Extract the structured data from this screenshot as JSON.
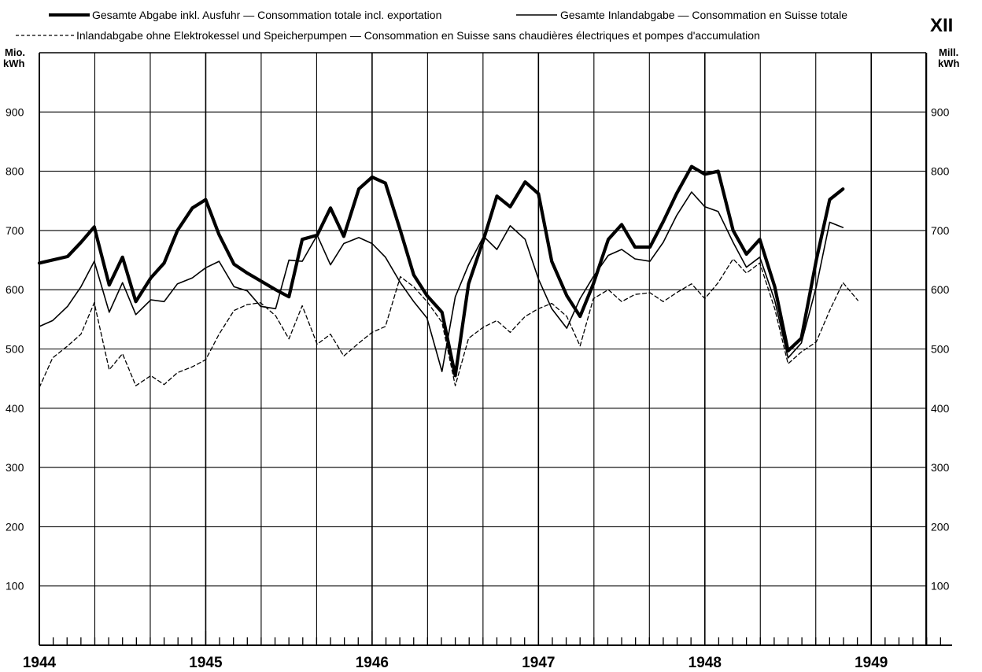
{
  "chart_data": {
    "type": "line",
    "figure_number": "XII",
    "y_unit_left": [
      "Mio.",
      "kWh"
    ],
    "y_unit_right": [
      "Mill.",
      "kWh"
    ],
    "ylim": [
      0,
      1000
    ],
    "yticks": [
      100,
      200,
      300,
      400,
      500,
      600,
      700,
      800,
      900
    ],
    "x_years": [
      "1944",
      "1945",
      "1946",
      "1947",
      "1948",
      "1949"
    ],
    "grid": true,
    "legend_placement": "top",
    "series": [
      {
        "name": "Gesamte Abgabe inkl. Ausfuhr — Consommation totale incl. exportation",
        "style": "thick",
        "color": "#000000",
        "points": [
          [
            1944.0,
            645
          ],
          [
            1944.17,
            656
          ],
          [
            1944.25,
            680
          ],
          [
            1944.33,
            706
          ],
          [
            1944.42,
            608
          ],
          [
            1944.5,
            655
          ],
          [
            1944.58,
            580
          ],
          [
            1944.67,
            620
          ],
          [
            1944.75,
            645
          ],
          [
            1944.83,
            700
          ],
          [
            1944.92,
            738
          ],
          [
            1945.0,
            752
          ],
          [
            1945.08,
            693
          ],
          [
            1945.17,
            643
          ],
          [
            1945.25,
            628
          ],
          [
            1945.33,
            615
          ],
          [
            1945.42,
            600
          ],
          [
            1945.5,
            588
          ],
          [
            1945.58,
            685
          ],
          [
            1945.67,
            692
          ],
          [
            1945.75,
            738
          ],
          [
            1945.83,
            690
          ],
          [
            1945.92,
            770
          ],
          [
            1946.0,
            790
          ],
          [
            1946.08,
            780
          ],
          [
            1946.17,
            700
          ],
          [
            1946.25,
            625
          ],
          [
            1946.33,
            590
          ],
          [
            1946.42,
            562
          ],
          [
            1946.5,
            455
          ],
          [
            1946.58,
            610
          ],
          [
            1946.67,
            685
          ],
          [
            1946.75,
            758
          ],
          [
            1946.83,
            740
          ],
          [
            1946.92,
            782
          ],
          [
            1947.0,
            762
          ],
          [
            1947.08,
            648
          ],
          [
            1947.17,
            590
          ],
          [
            1947.25,
            555
          ],
          [
            1947.33,
            610
          ],
          [
            1947.42,
            685
          ],
          [
            1947.5,
            710
          ],
          [
            1947.58,
            672
          ],
          [
            1947.67,
            672
          ],
          [
            1947.75,
            715
          ],
          [
            1947.83,
            762
          ],
          [
            1947.92,
            808
          ],
          [
            1948.0,
            795
          ],
          [
            1948.08,
            800
          ],
          [
            1948.17,
            700
          ],
          [
            1948.25,
            660
          ],
          [
            1948.33,
            685
          ],
          [
            1948.42,
            605
          ],
          [
            1948.5,
            497
          ],
          [
            1948.58,
            518
          ],
          [
            1948.67,
            650
          ],
          [
            1948.75,
            752
          ],
          [
            1948.83,
            770
          ]
        ]
      },
      {
        "name": "Gesamte Inlandabgabe — Consommation en Suisse totale",
        "style": "thin",
        "color": "#000000",
        "points": [
          [
            1944.0,
            538
          ],
          [
            1944.08,
            548
          ],
          [
            1944.17,
            572
          ],
          [
            1944.25,
            605
          ],
          [
            1944.33,
            648
          ],
          [
            1944.42,
            562
          ],
          [
            1944.5,
            612
          ],
          [
            1944.58,
            558
          ],
          [
            1944.67,
            583
          ],
          [
            1944.75,
            580
          ],
          [
            1944.83,
            610
          ],
          [
            1944.92,
            620
          ],
          [
            1945.0,
            637
          ],
          [
            1945.08,
            648
          ],
          [
            1945.17,
            605
          ],
          [
            1945.25,
            598
          ],
          [
            1945.33,
            572
          ],
          [
            1945.42,
            568
          ],
          [
            1945.5,
            650
          ],
          [
            1945.58,
            648
          ],
          [
            1945.67,
            692
          ],
          [
            1945.75,
            642
          ],
          [
            1945.83,
            678
          ],
          [
            1945.92,
            688
          ],
          [
            1946.0,
            678
          ],
          [
            1946.08,
            655
          ],
          [
            1946.17,
            612
          ],
          [
            1946.25,
            580
          ],
          [
            1946.33,
            552
          ],
          [
            1946.42,
            462
          ],
          [
            1946.5,
            588
          ],
          [
            1946.58,
            642
          ],
          [
            1946.67,
            690
          ],
          [
            1946.75,
            668
          ],
          [
            1946.83,
            708
          ],
          [
            1946.92,
            685
          ],
          [
            1947.0,
            618
          ],
          [
            1947.08,
            568
          ],
          [
            1947.17,
            535
          ],
          [
            1947.25,
            585
          ],
          [
            1947.33,
            622
          ],
          [
            1947.42,
            658
          ],
          [
            1947.5,
            668
          ],
          [
            1947.58,
            652
          ],
          [
            1947.67,
            648
          ],
          [
            1947.75,
            680
          ],
          [
            1947.83,
            725
          ],
          [
            1947.92,
            765
          ],
          [
            1948.0,
            740
          ],
          [
            1948.08,
            732
          ],
          [
            1948.17,
            680
          ],
          [
            1948.25,
            638
          ],
          [
            1948.33,
            655
          ],
          [
            1948.42,
            582
          ],
          [
            1948.5,
            485
          ],
          [
            1948.58,
            510
          ],
          [
            1948.67,
            605
          ],
          [
            1948.75,
            714
          ],
          [
            1948.83,
            705
          ]
        ]
      },
      {
        "name": "Inlandabgabe ohne Elektrokessel und Speicherpumpen — Consommation en Suisse sans chaudières électriques et pompes d'accumulation",
        "style": "dashed",
        "color": "#000000",
        "points": [
          [
            1944.0,
            435
          ],
          [
            1944.08,
            485
          ],
          [
            1944.17,
            505
          ],
          [
            1944.25,
            525
          ],
          [
            1944.33,
            578
          ],
          [
            1944.42,
            465
          ],
          [
            1944.5,
            492
          ],
          [
            1944.58,
            438
          ],
          [
            1944.67,
            455
          ],
          [
            1944.75,
            440
          ],
          [
            1944.83,
            460
          ],
          [
            1944.92,
            470
          ],
          [
            1945.0,
            482
          ],
          [
            1945.08,
            525
          ],
          [
            1945.17,
            565
          ],
          [
            1945.25,
            575
          ],
          [
            1945.33,
            578
          ],
          [
            1945.42,
            556
          ],
          [
            1945.5,
            517
          ],
          [
            1945.58,
            573
          ],
          [
            1945.67,
            508
          ],
          [
            1945.75,
            525
          ],
          [
            1945.83,
            488
          ],
          [
            1945.92,
            510
          ],
          [
            1946.0,
            528
          ],
          [
            1946.08,
            538
          ],
          [
            1946.17,
            622
          ],
          [
            1946.25,
            605
          ],
          [
            1946.33,
            580
          ],
          [
            1946.42,
            545
          ],
          [
            1946.5,
            438
          ],
          [
            1946.58,
            518
          ],
          [
            1946.67,
            537
          ],
          [
            1946.75,
            548
          ],
          [
            1946.83,
            528
          ],
          [
            1946.92,
            555
          ],
          [
            1947.0,
            568
          ],
          [
            1947.08,
            577
          ],
          [
            1947.17,
            555
          ],
          [
            1947.25,
            505
          ],
          [
            1947.33,
            585
          ],
          [
            1947.42,
            600
          ],
          [
            1947.5,
            580
          ],
          [
            1947.58,
            592
          ],
          [
            1947.67,
            595
          ],
          [
            1947.75,
            580
          ],
          [
            1947.83,
            595
          ],
          [
            1947.92,
            610
          ],
          [
            1948.0,
            585
          ],
          [
            1948.08,
            612
          ],
          [
            1948.17,
            652
          ],
          [
            1948.25,
            628
          ],
          [
            1948.33,
            645
          ],
          [
            1948.42,
            568
          ],
          [
            1948.5,
            475
          ],
          [
            1948.58,
            495
          ],
          [
            1948.67,
            512
          ],
          [
            1948.75,
            565
          ],
          [
            1948.83,
            612
          ],
          [
            1948.92,
            582
          ]
        ]
      }
    ]
  }
}
